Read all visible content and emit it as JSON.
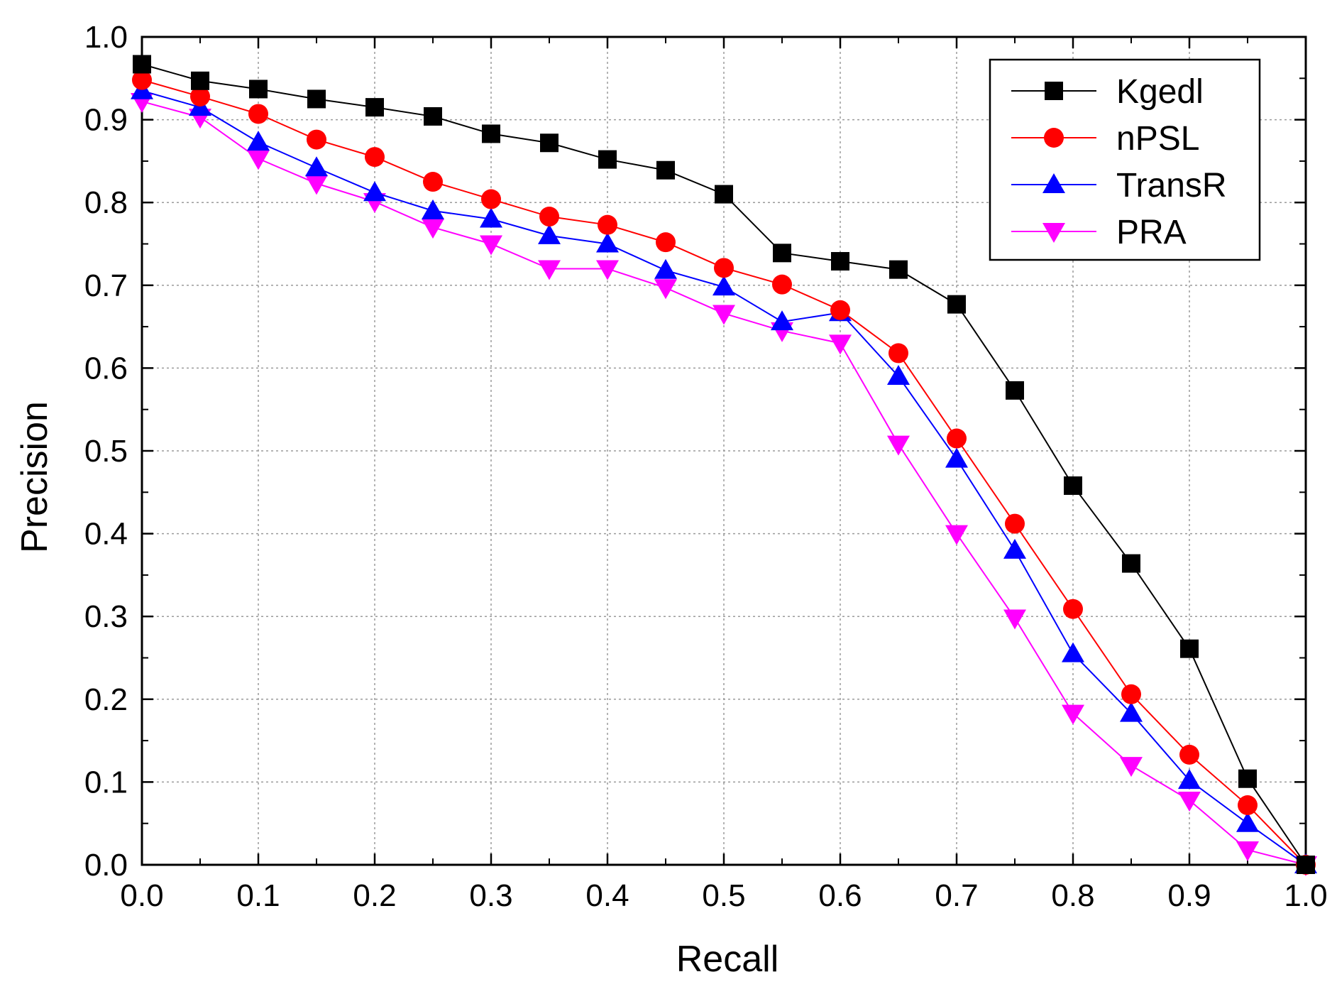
{
  "chart_data": {
    "type": "line",
    "title": "",
    "xlabel": "Recall",
    "ylabel": "Precision",
    "xlim": [
      0.0,
      1.0
    ],
    "ylim": [
      0.0,
      1.0
    ],
    "x_ticks": [
      "0.0",
      "0.1",
      "0.2",
      "0.3",
      "0.4",
      "0.5",
      "0.6",
      "0.7",
      "0.8",
      "0.9",
      "1.0"
    ],
    "y_ticks": [
      "0.0",
      "0.1",
      "0.2",
      "0.3",
      "0.4",
      "0.5",
      "0.6",
      "0.7",
      "0.8",
      "0.9",
      "1.0"
    ],
    "grid": true,
    "legend_position": "top-right",
    "x": [
      0.0,
      0.05,
      0.1,
      0.15,
      0.2,
      0.25,
      0.3,
      0.35,
      0.4,
      0.45,
      0.5,
      0.55,
      0.6,
      0.65,
      0.7,
      0.75,
      0.8,
      0.85,
      0.9,
      0.95,
      1.0
    ],
    "series": [
      {
        "name": "Kgedl",
        "color": "#000000",
        "marker": "square",
        "values": [
          0.967,
          0.947,
          0.937,
          0.925,
          0.915,
          0.904,
          0.883,
          0.872,
          0.852,
          0.839,
          0.81,
          0.739,
          0.729,
          0.719,
          0.677,
          0.573,
          0.458,
          0.364,
          0.261,
          0.104,
          0.0
        ]
      },
      {
        "name": "nPSL",
        "color": "#ff0000",
        "marker": "circle",
        "values": [
          0.948,
          0.928,
          0.907,
          0.876,
          0.855,
          0.825,
          0.804,
          0.783,
          0.773,
          0.752,
          0.721,
          0.701,
          0.67,
          0.618,
          0.515,
          0.412,
          0.309,
          0.206,
          0.133,
          0.072,
          0.0
        ]
      },
      {
        "name": "TransR",
        "color": "#0000ff",
        "marker": "triangle-up",
        "values": [
          0.935,
          0.915,
          0.873,
          0.842,
          0.812,
          0.79,
          0.78,
          0.76,
          0.75,
          0.718,
          0.698,
          0.656,
          0.667,
          0.59,
          0.49,
          0.38,
          0.255,
          0.183,
          0.102,
          0.05,
          0.0
        ]
      },
      {
        "name": "PRA",
        "color": "#ff00ff",
        "marker": "triangle-down",
        "values": [
          0.922,
          0.903,
          0.853,
          0.823,
          0.801,
          0.77,
          0.75,
          0.72,
          0.72,
          0.697,
          0.666,
          0.645,
          0.63,
          0.508,
          0.4,
          0.298,
          0.183,
          0.12,
          0.078,
          0.018,
          0.0
        ]
      }
    ]
  }
}
